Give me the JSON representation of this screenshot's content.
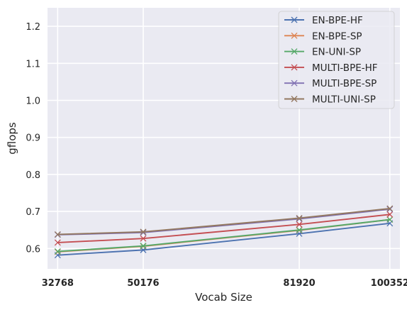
{
  "chart_data": {
    "type": "line",
    "title": "",
    "xlabel": "Vocab Size",
    "ylabel": "gflops",
    "x": [
      32768,
      50176,
      81920,
      100352
    ],
    "x_tick_labels": [
      "32768",
      "50176",
      "81920",
      "100352"
    ],
    "xlim": [
      30700,
      102400
    ],
    "ylim": [
      0.545,
      1.25
    ],
    "y_ticks": [
      0.6,
      0.7,
      0.8,
      0.9,
      1.0,
      1.1,
      1.2
    ],
    "y_tick_labels": [
      "0.6",
      "0.7",
      "0.8",
      "0.9",
      "1.0",
      "1.1",
      "1.2"
    ],
    "grid": true,
    "legend_position": "top-right",
    "marker": "x",
    "background": "#eaeaf2",
    "series": [
      {
        "name": "EN-BPE-HF",
        "color": "#4c72b0",
        "values": [
          0.582,
          0.596,
          0.64,
          0.668
        ]
      },
      {
        "name": "EN-BPE-SP",
        "color": "#dd8452",
        "values": [
          0.591,
          0.606,
          0.649,
          0.678
        ]
      },
      {
        "name": "EN-UNI-SP",
        "color": "#55a868",
        "values": [
          0.592,
          0.607,
          0.65,
          0.678
        ]
      },
      {
        "name": "MULTI-BPE-HF",
        "color": "#c44e52",
        "values": [
          0.616,
          0.627,
          0.665,
          0.692
        ]
      },
      {
        "name": "MULTI-BPE-SP",
        "color": "#8172b3",
        "values": [
          0.637,
          0.643,
          0.68,
          0.706
        ]
      },
      {
        "name": "MULTI-UNI-SP",
        "color": "#937860",
        "values": [
          0.638,
          0.645,
          0.682,
          0.708
        ]
      }
    ]
  }
}
